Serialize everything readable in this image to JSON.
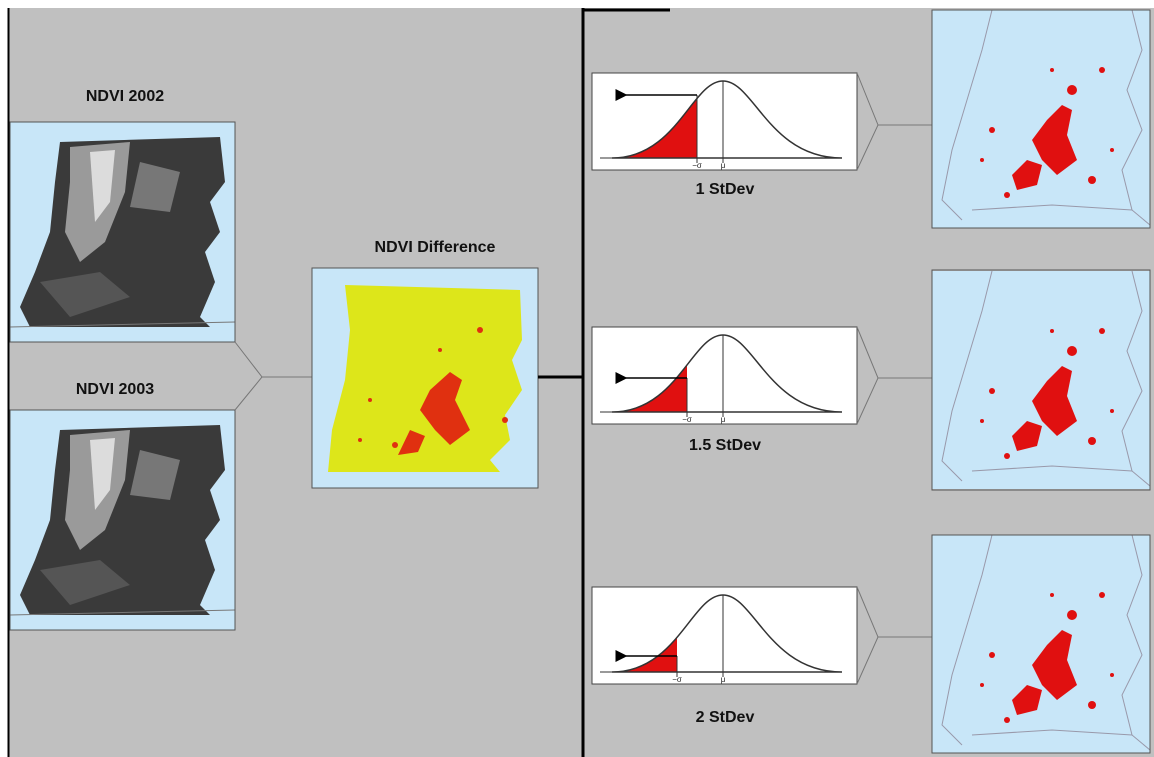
{
  "inputs": [
    {
      "label": "NDVI 2002"
    },
    {
      "label": "NDVI 2003"
    }
  ],
  "difference": {
    "label": "NDVI Difference"
  },
  "thresholds": [
    {
      "label": "1 StDev",
      "sigma_label": "−σ",
      "mu_label": "μ"
    },
    {
      "label": "1.5 StDev",
      "sigma_label": "−σ",
      "mu_label": "μ"
    },
    {
      "label": "2 StDev",
      "sigma_label": "−σ",
      "mu_label": "μ"
    }
  ]
}
